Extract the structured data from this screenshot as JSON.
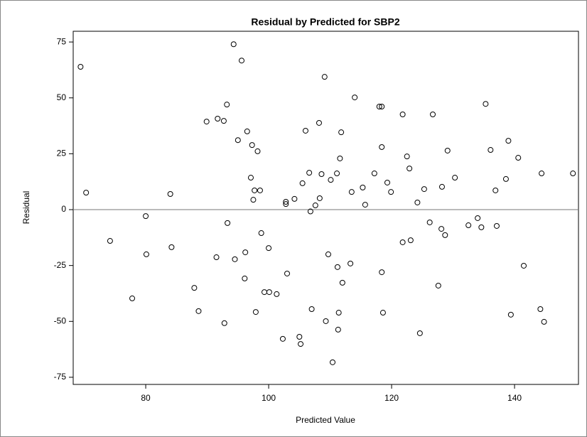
{
  "chart_data": {
    "type": "scatter",
    "title": "Residual by Predicted for SBP2",
    "x_label": "Predicted Value",
    "y_label": "Residual",
    "xlim": [
      68.2,
      150.4
    ],
    "ylim": [
      -78.2,
      79.8
    ],
    "xticks": [
      80,
      100,
      120,
      140
    ],
    "yticks": [
      75,
      50,
      25,
      0,
      -25,
      -50,
      -75
    ],
    "reference_line": 0,
    "color": "#000000",
    "x": [
      69.4,
      70.3,
      74.2,
      77.8,
      80.0,
      80.1,
      84.0,
      84.2,
      87.9,
      88.6,
      89.9,
      91.7,
      91.5,
      92.7,
      92.8,
      93.2,
      93.3,
      94.3,
      94.5,
      95.0,
      95.6,
      96.2,
      96.1,
      96.5,
      97.1,
      97.3,
      97.5,
      97.7,
      97.9,
      98.2,
      98.6,
      98.8,
      99.3,
      100.1,
      100.0,
      101.3,
      102.3,
      102.8,
      102.8,
      103.0,
      104.2,
      105.0,
      105.2,
      105.5,
      106.0,
      106.6,
      106.8,
      107.0,
      107.6,
      108.2,
      108.3,
      108.6,
      109.1,
      109.3,
      109.7,
      110.1,
      110.4,
      111.1,
      111.2,
      111.3,
      111.4,
      111.6,
      111.8,
      112.0,
      113.3,
      113.5,
      114.0,
      115.3,
      115.7,
      117.2,
      118.0,
      118.4,
      118.4,
      118.4,
      118.6,
      119.3,
      119.9,
      121.8,
      121.8,
      122.5,
      122.9,
      123.1,
      124.2,
      124.6,
      125.3,
      126.2,
      126.7,
      127.6,
      128.1,
      128.2,
      128.7,
      129.1,
      130.3,
      132.5,
      134.0,
      134.6,
      135.3,
      136.1,
      136.9,
      137.1,
      138.6,
      139.0,
      139.4,
      140.6,
      141.5,
      144.2,
      144.4,
      144.8,
      149.5
    ],
    "values": [
      63.9,
      7.6,
      -14.0,
      -39.7,
      -2.9,
      -20.0,
      7.0,
      -16.8,
      -35.0,
      -45.4,
      39.4,
      40.7,
      -21.3,
      39.7,
      -50.8,
      47.0,
      -6.0,
      74.0,
      -22.2,
      31.1,
      66.7,
      -19.1,
      -30.8,
      35.0,
      14.3,
      28.9,
      4.4,
      8.6,
      -45.8,
      26.1,
      8.6,
      -10.5,
      -36.9,
      -36.9,
      -17.2,
      -37.8,
      -57.8,
      3.5,
      2.5,
      -28.6,
      4.8,
      -56.9,
      -60.1,
      11.8,
      35.3,
      16.5,
      -0.8,
      -44.5,
      1.9,
      38.8,
      5.1,
      15.9,
      59.4,
      -49.9,
      -20.0,
      13.3,
      -68.3,
      16.2,
      -25.7,
      -53.7,
      -46.1,
      22.9,
      34.6,
      -32.7,
      -24.1,
      7.9,
      50.2,
      9.9,
      2.2,
      16.2,
      46.1,
      46.1,
      28.0,
      -28.0,
      -46.1,
      12.1,
      7.9,
      42.6,
      -14.6,
      23.8,
      18.4,
      -13.7,
      3.2,
      -55.3,
      9.2,
      -5.7,
      42.6,
      -34.0,
      -8.6,
      10.2,
      -11.4,
      26.4,
      14.3,
      -7.0,
      -3.8,
      -7.9,
      47.3,
      26.7,
      8.6,
      -7.3,
      13.7,
      30.8,
      -47.0,
      23.2,
      -25.1,
      -44.5,
      16.2,
      -50.2,
      16.2
    ]
  }
}
